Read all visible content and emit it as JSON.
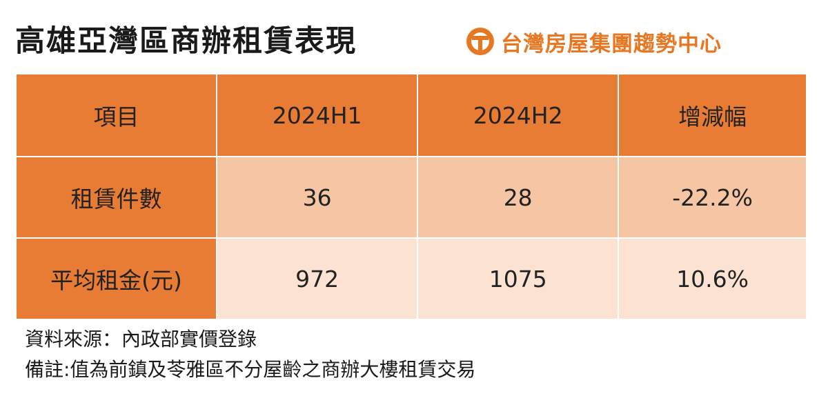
{
  "header": {
    "title": "高雄亞灣區商辦租賃表現",
    "brand_name": "台灣房屋集團趨勢中心",
    "brand_color": "#E87722"
  },
  "colors": {
    "header_fill": "#E87C35",
    "row1_fill": "#F6C6A4",
    "row2_fill": "#FBE2D2"
  },
  "chart_data": {
    "type": "table",
    "title": "高雄亞灣區商辦租賃表現",
    "columns": [
      "項目",
      "2024H1",
      "2024H2",
      "增減幅"
    ],
    "rows": [
      [
        "租賃件數",
        "36",
        "28",
        "-22.2%"
      ],
      [
        "平均租金(元)",
        "972",
        "1075",
        "10.6%"
      ]
    ]
  },
  "notes": {
    "source": "資料來源：內政部實價登錄",
    "remark": "備註:值為前鎮及苓雅區不分屋齡之商辦大樓租賃交易"
  }
}
